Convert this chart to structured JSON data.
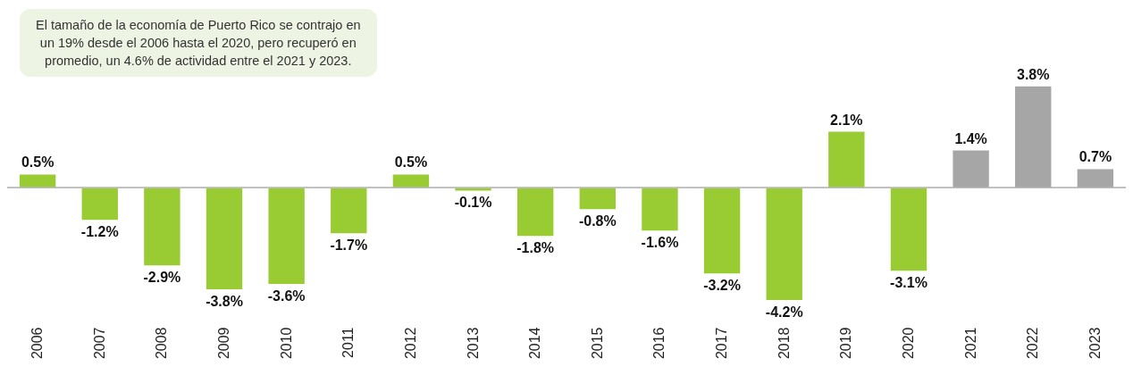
{
  "chart_data": {
    "type": "bar",
    "categories": [
      "2006",
      "2007",
      "2008",
      "2009",
      "2010",
      "2011",
      "2012",
      "2013",
      "2014",
      "2015",
      "2016",
      "2017",
      "2018",
      "2019",
      "2020",
      "2021",
      "2022",
      "2023"
    ],
    "values": [
      0.5,
      -1.2,
      -2.9,
      -3.8,
      -3.6,
      -1.7,
      0.5,
      -0.1,
      -1.8,
      -0.8,
      -1.6,
      -3.2,
      -4.2,
      2.1,
      -3.1,
      1.4,
      3.8,
      0.7
    ],
    "value_labels": [
      "0.5%",
      "-1.2%",
      "-2.9%",
      "-3.8%",
      "-3.6%",
      "-1.7%",
      "0.5%",
      "-0.1%",
      "-1.8%",
      "-0.8%",
      "-1.6%",
      "-3.2%",
      "-4.2%",
      "2.1%",
      "-3.1%",
      "1.4%",
      "3.8%",
      "0.7%"
    ],
    "colors": [
      "#99cc33",
      "#99cc33",
      "#99cc33",
      "#99cc33",
      "#99cc33",
      "#99cc33",
      "#99cc33",
      "#99cc33",
      "#99cc33",
      "#99cc33",
      "#99cc33",
      "#99cc33",
      "#99cc33",
      "#99cc33",
      "#99cc33",
      "#a6a6a6",
      "#a6a6a6",
      "#a6a6a6"
    ],
    "annotations": [
      "El tamaño de la economía de Puerto Rico se contrajo en\nun 19% desde el 2006 hasta el 2020, pero recuperó en\npromedio, un 4.6% de actividad entre el 2021 y 2023."
    ],
    "grid": false
  }
}
